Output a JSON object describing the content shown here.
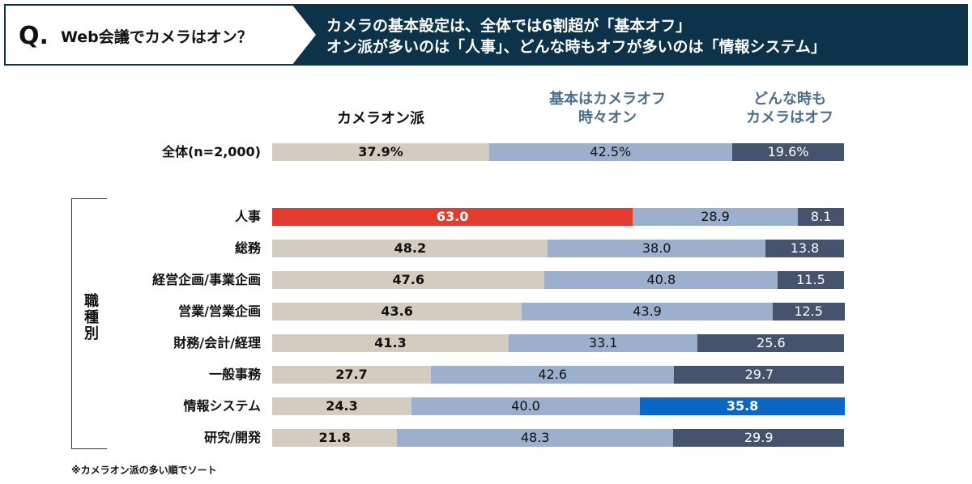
{
  "header": {
    "q_label": "Q.",
    "question": "Web会議でカメラはオン？",
    "subtitle_line1": "カメラの基本設定は、全体では6割超が「基本オフ」",
    "subtitle_line2": "オン派が多いのは「人事」、どんな時もオフが多いのは「情報システム」",
    "header_color": "#0c3349"
  },
  "chart_data": {
    "type": "bar",
    "orientation": "horizontal",
    "stacked": true,
    "percent_stacked": true,
    "legend": [
      "カメラオン派",
      "基本はカメラオフ 時々オン",
      "どんな時も カメラはオフ"
    ],
    "legend_lines": [
      [
        "カメラオン派"
      ],
      [
        "基本はカメラオフ",
        "時々オン"
      ],
      [
        "どんな時も",
        "カメラはオフ"
      ]
    ],
    "colors": [
      "#d3ccc0",
      "#9cafcc",
      "#45546c"
    ],
    "highlight": {
      "人事": {
        "series": 0,
        "color": "#e33b2e"
      },
      "情報システム": {
        "series": 2,
        "color": "#0a67c4"
      }
    },
    "overall": {
      "label": "全体(n=2,000)",
      "values": [
        37.9,
        42.5,
        19.6
      ],
      "value_labels": [
        "37.9%",
        "42.5%",
        "19.6%"
      ]
    },
    "group_label": "職種別",
    "categories": [
      "人事",
      "総務",
      "経営企画/事業企画",
      "営業/営業企画",
      "財務/会計/経理",
      "一般事務",
      "情報システム",
      "研究/開発"
    ],
    "series": [
      {
        "name": "カメラオン派",
        "values": [
          63.0,
          48.2,
          47.6,
          43.6,
          41.3,
          27.7,
          24.3,
          21.8
        ]
      },
      {
        "name": "基本はカメラオフ 時々オン",
        "values": [
          28.9,
          38.0,
          40.8,
          43.9,
          33.1,
          42.6,
          40.0,
          48.3
        ]
      },
      {
        "name": "どんな時も カメラはオフ",
        "values": [
          8.1,
          13.8,
          11.5,
          12.5,
          25.6,
          29.7,
          35.8,
          29.9
        ]
      }
    ],
    "value_labels": [
      [
        "63.0",
        "48.2",
        "47.6",
        "43.6",
        "41.3",
        "27.7",
        "24.3",
        "21.8"
      ],
      [
        "28.9",
        "38.0",
        "40.8",
        "43.9",
        "33.1",
        "42.6",
        "40.0",
        "48.3"
      ],
      [
        "8.1",
        "13.8",
        "11.5",
        "12.5",
        "25.6",
        "29.7",
        "35.8",
        "29.9"
      ]
    ],
    "xlim": [
      0,
      100
    ]
  },
  "footnote": "※カメラオン派の多い順でソート"
}
